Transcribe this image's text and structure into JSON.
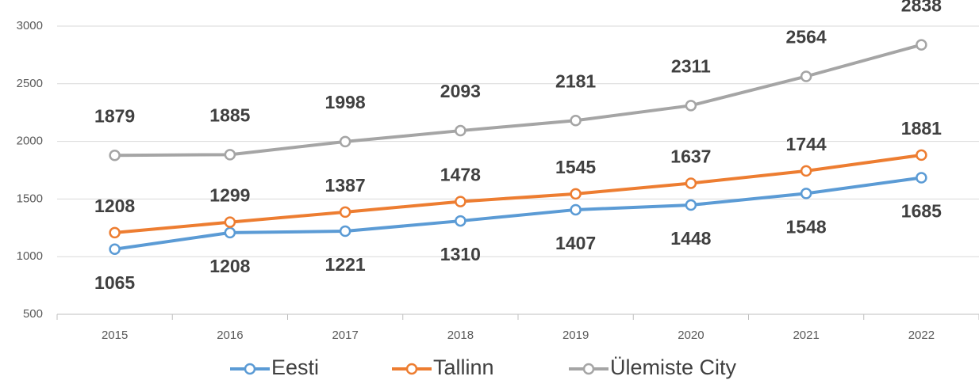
{
  "chart_data": {
    "type": "line",
    "categories": [
      "2015",
      "2016",
      "2017",
      "2018",
      "2019",
      "2020",
      "2021",
      "2022"
    ],
    "series": [
      {
        "name": "Eesti",
        "color": "#5b9bd5",
        "values": [
          1065,
          1208,
          1221,
          1310,
          1407,
          1448,
          1548,
          1685
        ]
      },
      {
        "name": "Tallinn",
        "color": "#ed7d31",
        "values": [
          1208,
          1299,
          1387,
          1478,
          1545,
          1637,
          1744,
          1881
        ]
      },
      {
        "name": "Ülemiste City",
        "color": "#a5a5a5",
        "values": [
          1879,
          1885,
          1998,
          2093,
          2181,
          2311,
          2564,
          2838
        ]
      }
    ],
    "ylim": [
      500,
      3000
    ],
    "yticks": [
      500,
      1000,
      1500,
      2000,
      2500,
      3000
    ],
    "grid": true,
    "legend": "bottom"
  }
}
